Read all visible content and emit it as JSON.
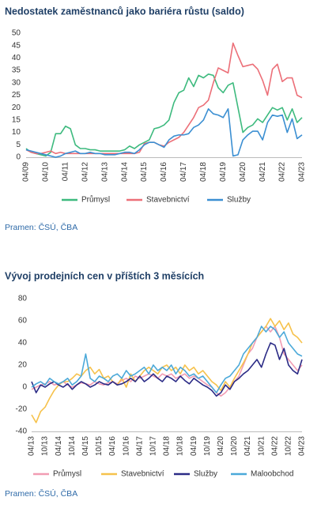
{
  "chart_data": [
    {
      "type": "line",
      "title": "Nedostatek zaměstnanců jako bariéra růstu (saldo)",
      "source": "Pramen: ČSÚ, ČBA",
      "categories": [
        "04/09",
        null,
        null,
        null,
        "04/10",
        null,
        null,
        null,
        "04/11",
        null,
        null,
        null,
        "04/12",
        null,
        null,
        null,
        "04/13",
        null,
        null,
        null,
        "04/14",
        null,
        null,
        null,
        "04/15",
        null,
        null,
        null,
        "04/16",
        null,
        null,
        null,
        "04/17",
        null,
        null,
        null,
        "04/18",
        null,
        null,
        null,
        "04/19",
        null,
        null,
        null,
        "04/20",
        null,
        null,
        null,
        "04/21",
        null,
        null,
        null,
        "04/22",
        null,
        null,
        null,
        "04/23"
      ],
      "series": [
        {
          "name": "Průmysl",
          "color": "#3dba7e",
          "values": [
            3.5,
            2,
            1.5,
            1,
            0.5,
            2,
            9.5,
            9.5,
            12.5,
            11.5,
            5,
            3.5,
            3.5,
            3,
            3,
            2.5,
            2.5,
            2.5,
            2.5,
            2.5,
            3,
            4.5,
            3.5,
            5,
            6,
            7,
            11.5,
            12,
            13,
            15,
            22,
            26,
            27,
            32,
            28.5,
            33,
            32,
            33.5,
            33,
            28,
            26,
            29,
            30,
            20,
            10,
            12,
            13,
            15.5,
            14,
            17,
            20,
            19,
            20,
            15,
            19.5,
            14,
            16
          ]
        },
        {
          "name": "Stavebnictví",
          "color": "#ec6f78",
          "values": [
            3,
            2,
            1.5,
            1.5,
            2,
            2.5,
            1.5,
            2,
            1.5,
            1.5,
            1.5,
            1.5,
            1.5,
            1.5,
            1.5,
            1.5,
            1.5,
            1.5,
            1.5,
            1.5,
            1.5,
            1.5,
            1.5,
            2,
            5.5,
            6,
            6,
            5,
            4.5,
            6,
            7,
            8,
            10,
            13,
            16,
            20,
            21,
            23,
            30,
            36,
            35,
            34,
            46,
            41,
            36.5,
            37,
            37.5,
            35.5,
            31,
            25,
            35.5,
            37.5,
            30.5,
            32,
            32,
            25,
            24
          ]
        },
        {
          "name": "Služby",
          "color": "#3b8fd2",
          "values": [
            3,
            2.5,
            2,
            1.5,
            1,
            0.5,
            0,
            0.5,
            1.5,
            2,
            2.5,
            1.5,
            1.5,
            2,
            1.5,
            1.5,
            1,
            1,
            1,
            1.5,
            2,
            2,
            1.5,
            3,
            5,
            6,
            6,
            5,
            4,
            7,
            8.5,
            9,
            9,
            9.5,
            12,
            13,
            15,
            19.5,
            17.5,
            17,
            16,
            19.5,
            0.5,
            1,
            7,
            9,
            10.5,
            10.5,
            7,
            14,
            17,
            16.5,
            17,
            10,
            15.5,
            7.5,
            9
          ]
        }
      ],
      "ylim": [
        0,
        50
      ],
      "yticks": [
        0,
        5,
        10,
        15,
        20,
        25,
        30,
        35,
        40,
        45,
        50
      ],
      "grid": false
    },
    {
      "type": "line",
      "title": "Vývoj prodejních cen v příštích 3 měsících",
      "source": "Pramen: ČSÚ, ČBA",
      "categories": [
        "04/13",
        null,
        null,
        "10/13",
        null,
        null,
        "04/14",
        null,
        null,
        "10/14",
        null,
        null,
        "04/15",
        null,
        null,
        "10/15",
        null,
        null,
        "04/16",
        null,
        null,
        "10/16",
        null,
        null,
        "04/17",
        null,
        null,
        "10/17",
        null,
        null,
        "04/18",
        null,
        null,
        "10/18",
        null,
        null,
        "04/19",
        null,
        null,
        "10/19",
        null,
        null,
        "04/20",
        null,
        null,
        "10/20",
        null,
        null,
        "04/21",
        null,
        null,
        "10/21",
        null,
        null,
        "04/22",
        null,
        null,
        "10/22",
        null,
        null,
        "04/23"
      ],
      "series": [
        {
          "name": "Průmysl",
          "color": "#f19cb3",
          "values": [
            -2,
            0,
            2,
            3,
            5,
            2,
            3,
            5,
            2,
            0,
            2,
            4,
            3,
            2,
            5,
            3,
            2,
            4,
            5,
            3,
            6,
            8,
            5,
            10,
            8,
            10,
            12,
            10,
            8,
            12,
            10,
            12,
            8,
            10,
            12,
            8,
            10,
            8,
            5,
            2,
            0,
            -5,
            -8,
            -5,
            0,
            5,
            10,
            20,
            30,
            35,
            45,
            50,
            55,
            50,
            55,
            45,
            30,
            25,
            20,
            15,
            20
          ]
        },
        {
          "name": "Stavebnictví",
          "color": "#f6c24c",
          "values": [
            -25,
            -32,
            -22,
            -18,
            -10,
            -3,
            2,
            5,
            5,
            8,
            12,
            10,
            15,
            18,
            12,
            16,
            8,
            10,
            5,
            2,
            8,
            0,
            12,
            5,
            10,
            15,
            18,
            15,
            12,
            18,
            20,
            15,
            18,
            12,
            20,
            15,
            18,
            12,
            15,
            10,
            5,
            2,
            -3,
            5,
            0,
            8,
            15,
            22,
            30,
            40,
            45,
            50,
            55,
            62,
            55,
            60,
            52,
            58,
            48,
            45,
            40
          ]
        },
        {
          "name": "Služby",
          "color": "#2b2b86",
          "values": [
            5,
            -5,
            2,
            0,
            3,
            5,
            2,
            0,
            3,
            -2,
            2,
            5,
            3,
            0,
            2,
            5,
            3,
            2,
            5,
            2,
            3,
            5,
            8,
            5,
            10,
            5,
            8,
            12,
            8,
            5,
            10,
            8,
            5,
            10,
            6,
            3,
            8,
            5,
            2,
            0,
            -3,
            -8,
            -5,
            2,
            -2,
            5,
            8,
            12,
            15,
            20,
            25,
            18,
            30,
            40,
            38,
            25,
            35,
            20,
            15,
            12,
            25
          ]
        },
        {
          "name": "Maloobchod",
          "color": "#4ba9d9",
          "values": [
            0,
            3,
            5,
            2,
            8,
            5,
            3,
            5,
            8,
            2,
            5,
            10,
            30,
            8,
            5,
            10,
            8,
            5,
            10,
            12,
            8,
            15,
            10,
            12,
            15,
            18,
            12,
            20,
            15,
            18,
            15,
            20,
            12,
            18,
            15,
            10,
            12,
            8,
            10,
            5,
            0,
            -5,
            2,
            8,
            10,
            15,
            20,
            30,
            35,
            40,
            45,
            55,
            50,
            55,
            52,
            45,
            50,
            40,
            35,
            30,
            28
          ]
        }
      ],
      "ylim": [
        -40,
        80
      ],
      "yticks": [
        -40,
        -20,
        0,
        20,
        40,
        60,
        80
      ],
      "grid": false
    }
  ]
}
